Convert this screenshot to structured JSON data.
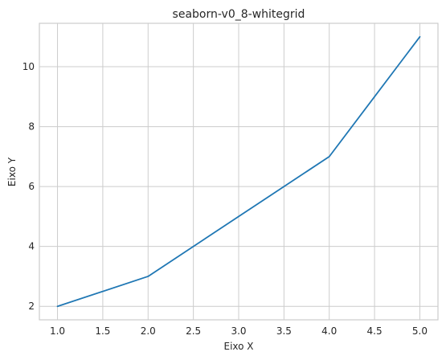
{
  "chart_data": {
    "type": "line",
    "title": "seaborn-v0_8-whitegrid",
    "xlabel": "Eixo X",
    "ylabel": "Eixo Y",
    "x": [
      1,
      2,
      3,
      4,
      5
    ],
    "series": [
      {
        "values": [
          2,
          3,
          5,
          7,
          11
        ],
        "color": "#1f77b4"
      }
    ],
    "xlim": [
      0.8,
      5.2
    ],
    "ylim": [
      1.55,
      11.45
    ],
    "xticks": [
      1.0,
      1.5,
      2.0,
      2.5,
      3.0,
      3.5,
      4.0,
      4.5,
      5.0
    ],
    "xtick_labels": [
      "1.0",
      "1.5",
      "2.0",
      "2.5",
      "3.0",
      "3.5",
      "4.0",
      "4.5",
      "5.0"
    ],
    "yticks": [
      2,
      4,
      6,
      8,
      10
    ],
    "ytick_labels": [
      "2",
      "4",
      "6",
      "8",
      "10"
    ],
    "grid": true,
    "legend": "none"
  }
}
